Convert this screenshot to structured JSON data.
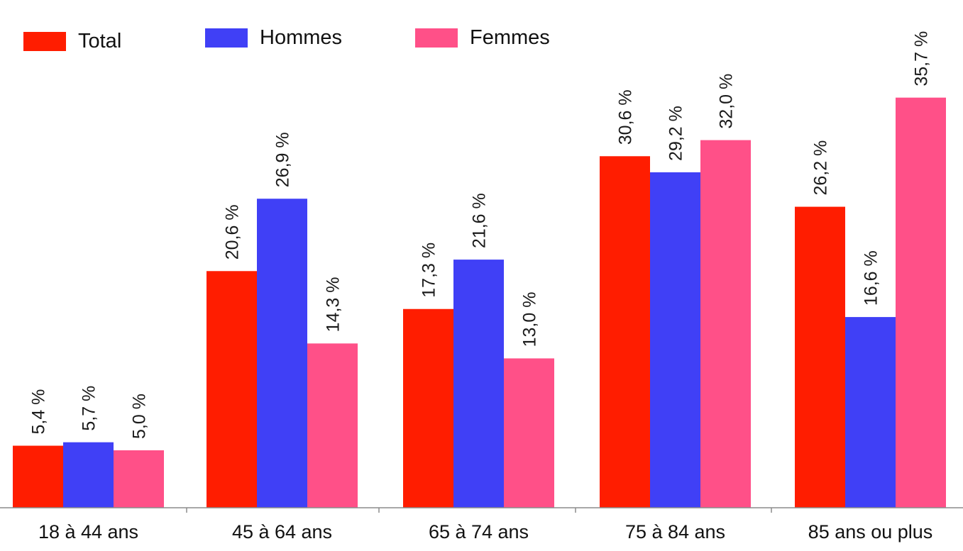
{
  "chart_data": {
    "type": "bar",
    "categories": [
      "18 à 44 ans",
      "45 à 64 ans",
      "65 à 74 ans",
      "75 à 84 ans",
      "85 ans ou plus"
    ],
    "series": [
      {
        "name": "Total",
        "color": "#ff1d00",
        "values": [
          5.4,
          20.6,
          17.3,
          30.6,
          26.2
        ],
        "labels": [
          "5,4 %",
          "20,6 %",
          "17,3 %",
          "30,6 %",
          "26,2 %"
        ]
      },
      {
        "name": "Hommes",
        "color": "#4040f6",
        "values": [
          5.7,
          26.9,
          21.6,
          29.2,
          16.6
        ],
        "labels": [
          "5,7 %",
          "26,9 %",
          "21,6 %",
          "29,2 %",
          "16,6 %"
        ]
      },
      {
        "name": "Femmes",
        "color": "#ff5088",
        "values": [
          5.0,
          14.3,
          13.0,
          32.0,
          35.7
        ],
        "labels": [
          "5,0 %",
          "14,3 %",
          "13,0 %",
          "32,0 %",
          "35,7 %"
        ]
      }
    ],
    "ylim": [
      0,
      40
    ],
    "grid": false,
    "legend_position": "top",
    "label_orientation": "vertical"
  }
}
